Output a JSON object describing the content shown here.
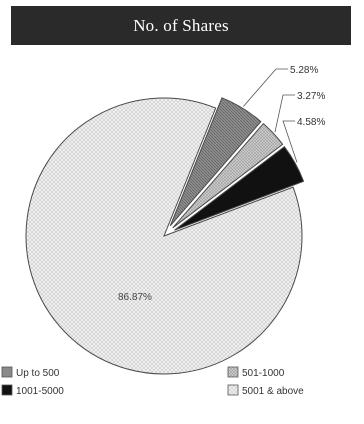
{
  "chart_data": {
    "type": "pie",
    "title": "No. of Shares",
    "labels": [
      "Up to 500",
      "501-1000",
      "1001-5000",
      "5001 & above"
    ],
    "values": [
      5.28,
      3.27,
      4.58,
      86.87
    ],
    "value_labels": [
      "5.28%",
      "3.27%",
      "4.58%",
      "86.87%"
    ],
    "legend": {
      "placement": "bottom",
      "items": [
        "Up to 500",
        "501-1000",
        "1001-5000",
        "5001 & above"
      ]
    },
    "exploded": [
      true,
      true,
      true,
      false
    ]
  },
  "colors": {
    "slice_up_to_500": "#8a8a8a",
    "slice_501_1000": "#c6c6c6",
    "slice_1001_5000": "#0e0e0e",
    "slice_5001_above": "#f0f0f0",
    "outline": "#555555",
    "title_bg": "#2a2a2a",
    "title_text": "#ffffff"
  }
}
